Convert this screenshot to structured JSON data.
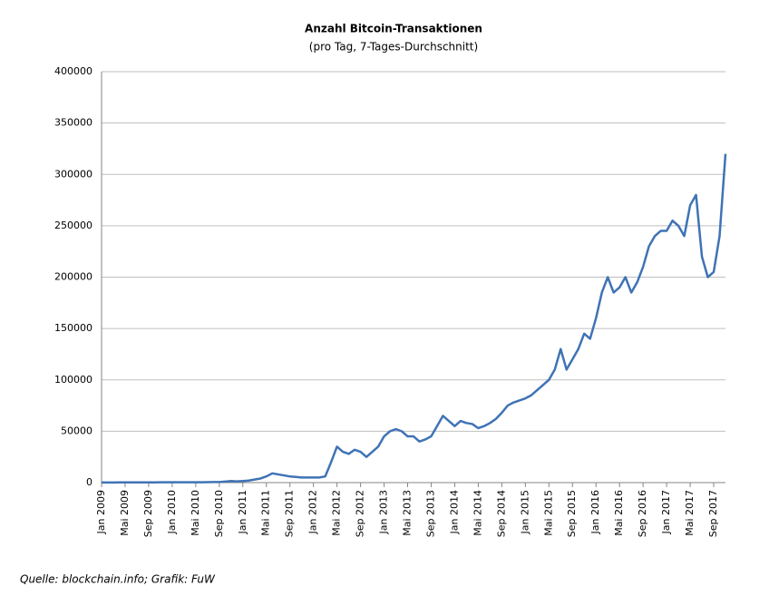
{
  "chart_data": {
    "type": "line",
    "title": "Anzahl Bitcoin-Transaktionen",
    "subtitle": "(pro Tag, 7-Tages-Durchschnitt)",
    "source": "Quelle: blockchain.info; Grafik: FuW",
    "categories": [
      "Jan 2009",
      null,
      null,
      null,
      "Mai 2009",
      null,
      null,
      null,
      "Sep 2009",
      null,
      null,
      null,
      "Jan 2010",
      null,
      null,
      null,
      "Mai 2010",
      null,
      null,
      null,
      "Sep 2010",
      null,
      null,
      null,
      "Jan 2011",
      null,
      null,
      null,
      "Mai 2011",
      null,
      null,
      null,
      "Sep 2011",
      null,
      null,
      null,
      "Jan 2012",
      null,
      null,
      null,
      "Mai 2012",
      null,
      null,
      null,
      "Sep 2012",
      null,
      null,
      null,
      "Jan 2013",
      null,
      null,
      null,
      "Mai 2013",
      null,
      null,
      null,
      "Sep 2013",
      null,
      null,
      null,
      "Jan 2014",
      null,
      null,
      null,
      "Mai 2014",
      null,
      null,
      null,
      "Sep 2014",
      null,
      null,
      null,
      "Jan 2015",
      null,
      null,
      null,
      "Mai 2015",
      null,
      null,
      null,
      "Sep 2015",
      null,
      null,
      null,
      "Jan 2016",
      null,
      null,
      null,
      "Mai 2016",
      null,
      null,
      null,
      "Sep 2016",
      null,
      null,
      null,
      "Jan 2017",
      null,
      null,
      null,
      "Mai 2017",
      null,
      null,
      null,
      "Sep 2017",
      null,
      null
    ],
    "series": [
      {
        "color": "#3f73b5",
        "values": [
          100,
          100,
          100,
          200,
          200,
          200,
          200,
          200,
          200,
          200,
          300,
          300,
          300,
          300,
          300,
          300,
          300,
          300,
          400,
          500,
          600,
          1000,
          1500,
          1200,
          1500,
          2000,
          3000,
          4000,
          6000,
          9000,
          8000,
          7000,
          6000,
          5500,
          5000,
          5000,
          5000,
          5000,
          6000,
          20000,
          35000,
          30000,
          28000,
          32000,
          30000,
          25000,
          30000,
          35000,
          45000,
          50000,
          52000,
          50000,
          45000,
          45000,
          40000,
          42000,
          45000,
          55000,
          65000,
          60000,
          55000,
          60000,
          58000,
          57000,
          53000,
          55000,
          58000,
          62000,
          68000,
          75000,
          78000,
          80000,
          82000,
          85000,
          90000,
          95000,
          100000,
          110000,
          130000,
          110000,
          120000,
          130000,
          145000,
          140000,
          160000,
          185000,
          200000,
          185000,
          190000,
          200000,
          185000,
          195000,
          210000,
          230000,
          240000,
          245000,
          245000,
          255000,
          250000,
          240000,
          270000,
          280000,
          220000,
          200000,
          205000,
          240000,
          320000
        ]
      }
    ],
    "ylim": [
      0,
      400000
    ],
    "yticks": [
      0,
      50000,
      100000,
      150000,
      200000,
      250000,
      300000,
      350000,
      400000
    ],
    "grid": true
  }
}
